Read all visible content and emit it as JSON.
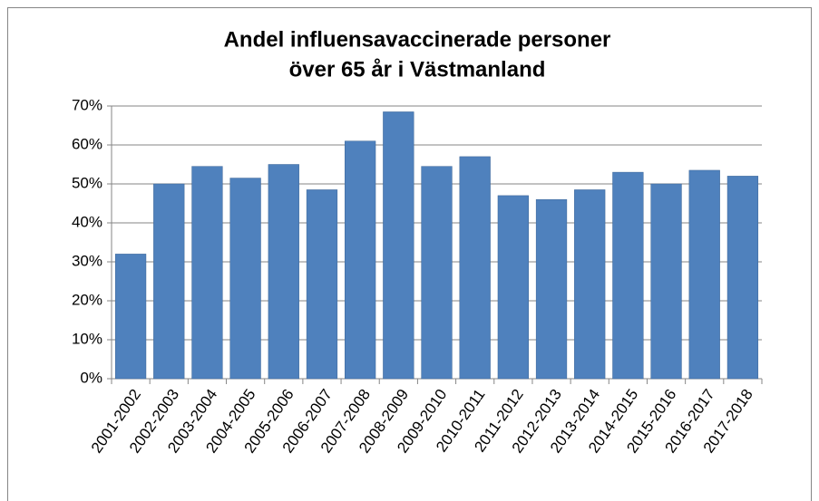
{
  "chart_data": {
    "type": "bar",
    "title": [
      "Andel influensavaccinerade personer",
      "över 65 år i Västmanland"
    ],
    "categories": [
      "2001-2002",
      "2002-2003",
      "2003-2004",
      "2004-2005",
      "2005-2006",
      "2006-2007",
      "2007-2008",
      "2008-2009",
      "2009-2010",
      "2010-2011",
      "2011-2012",
      "2012-2013",
      "2013-2014",
      "2014-2015",
      "2015-2016",
      "2016-2017",
      "2017-2018"
    ],
    "values": [
      32,
      50,
      54.5,
      51.5,
      55,
      48.5,
      61,
      68.5,
      54.5,
      57,
      47,
      46,
      48.5,
      53,
      50,
      53.5,
      52
    ],
    "color": "#4f81bd",
    "ylim": [
      0,
      70
    ],
    "yticks": [
      {
        "value": 0,
        "label": "0%"
      },
      {
        "value": 10,
        "label": "10%"
      },
      {
        "value": 20,
        "label": "20%"
      },
      {
        "value": 30,
        "label": "30%"
      },
      {
        "value": 40,
        "label": "40%"
      },
      {
        "value": 50,
        "label": "50%"
      },
      {
        "value": 60,
        "label": "60%"
      },
      {
        "value": 70,
        "label": "70%"
      }
    ],
    "grid": true
  }
}
